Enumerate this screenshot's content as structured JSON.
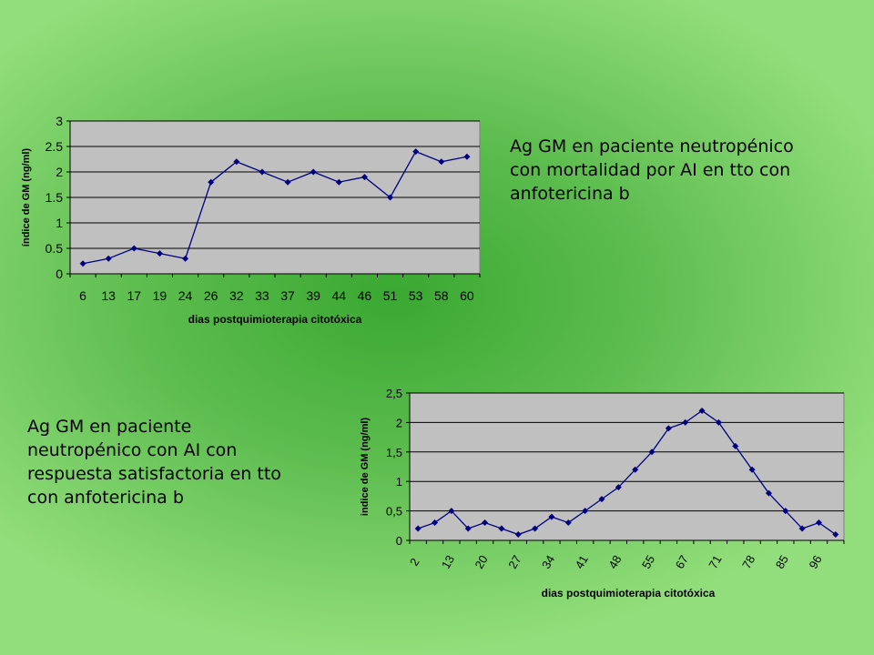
{
  "background_color": "#5cbc4e",
  "captions": {
    "top": "Ag GM en paciente neutropénico\ncon mortalidad por AI en tto con\nanfotericina b",
    "bottom": "Ag GM en paciente\nneutropénico con AI con\nrespuesta satisfactoria en  tto\ncon anfotericina b"
  },
  "chart_data": [
    {
      "type": "line",
      "categories": [
        "6",
        "13",
        "17",
        "19",
        "24",
        "26",
        "32",
        "33",
        "37",
        "39",
        "44",
        "46",
        "51",
        "53",
        "58",
        "60"
      ],
      "values": [
        0.2,
        0.3,
        0.5,
        0.4,
        0.3,
        1.8,
        2.2,
        2.0,
        1.8,
        2.0,
        1.8,
        1.9,
        1.5,
        2.4,
        2.2,
        2.3
      ],
      "y_ticks": [
        "0",
        "0.5",
        "1",
        "1.5",
        "2",
        "2.5",
        "3"
      ],
      "ylim": [
        0,
        3
      ],
      "xlabel": "dias postquimioterapia citotóxica",
      "ylabel": "índice de GM (ng/ml)",
      "plot_bg": "#c0c0c0",
      "line_color": "#000080",
      "grid": true,
      "legend": "none"
    },
    {
      "type": "line",
      "categories": [
        "2",
        "",
        "13",
        "",
        "20",
        "",
        "27",
        "",
        "34",
        "",
        "41",
        "",
        "48",
        "",
        "55",
        "",
        "67",
        "",
        "71",
        "",
        "78",
        "",
        "85",
        "",
        "96",
        ""
      ],
      "x_tick_labels": [
        "2",
        "13",
        "20",
        "27",
        "34",
        "41",
        "48",
        "55",
        "67",
        "71",
        "78",
        "85",
        "96"
      ],
      "values": [
        0.2,
        0.3,
        0.5,
        0.2,
        0.3,
        0.2,
        0.1,
        0.2,
        0.4,
        0.3,
        0.5,
        0.7,
        0.9,
        1.2,
        1.5,
        1.9,
        2.0,
        2.2,
        2.0,
        1.6,
        1.2,
        0.8,
        0.5,
        0.2,
        0.3,
        0.1
      ],
      "y_ticks": [
        "0",
        "0,5",
        "1",
        "1,5",
        "2",
        "2,5"
      ],
      "ylim": [
        0,
        2.5
      ],
      "xlabel": "dias postquimioterapia citotóxica",
      "ylabel": "indice de GM (ng/ml)",
      "plot_bg": "#c0c0c0",
      "line_color": "#000080",
      "grid": true,
      "legend": "none"
    }
  ]
}
